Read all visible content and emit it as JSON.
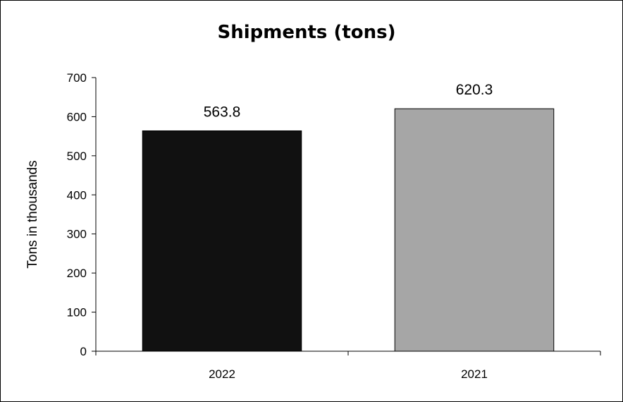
{
  "chart_data": {
    "type": "bar",
    "title": "Shipments (tons)",
    "xlabel": "",
    "ylabel": "Tons in thousands",
    "categories": [
      "2022",
      "2021"
    ],
    "values": [
      563.8,
      620.3
    ],
    "data_labels": [
      "563.8",
      "620.3"
    ],
    "colors": [
      "#111111",
      "#a6a6a6"
    ],
    "ylim": [
      0,
      700
    ],
    "yticks": [
      0,
      100,
      200,
      300,
      400,
      500,
      600,
      700
    ],
    "grid": false,
    "legend": "none"
  }
}
